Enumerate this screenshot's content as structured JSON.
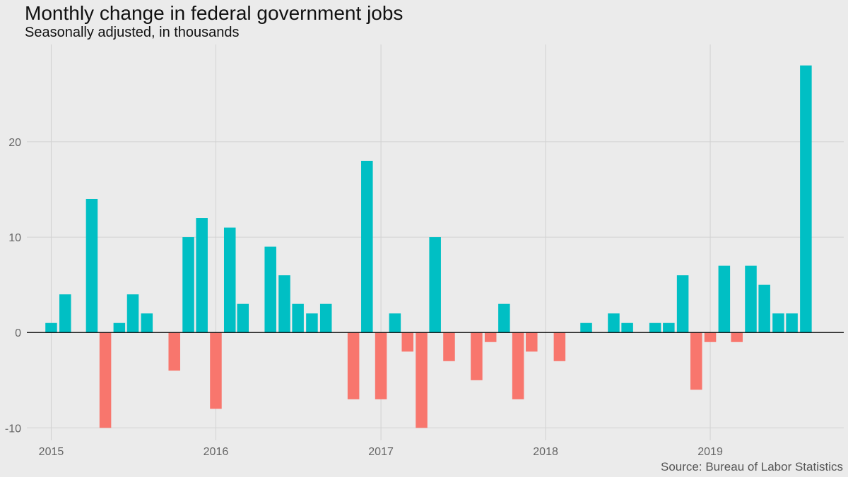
{
  "chart_data": {
    "type": "bar",
    "title": "Monthly change in federal government jobs",
    "subtitle": "Seasonally adjusted, in thousands",
    "caption": "Source: Bureau of Labor Statistics",
    "xlabel": "",
    "ylabel": "",
    "ylim": [
      -11.3,
      30.2
    ],
    "yticks": [
      -10,
      0,
      10,
      20
    ],
    "xticks": [
      "2015",
      "2016",
      "2017",
      "2018",
      "2019"
    ],
    "x_range": [
      "2014-11-08",
      "2019-10-24"
    ],
    "grid": true,
    "legend": "none",
    "colors": {
      "positive": "#00bfc4",
      "negative": "#f8766d",
      "zero_line": "#000000"
    },
    "x": [
      "2015-01",
      "2015-02",
      "2015-03",
      "2015-04",
      "2015-05",
      "2015-06",
      "2015-07",
      "2015-08",
      "2015-09",
      "2015-10",
      "2015-11",
      "2015-12",
      "2016-01",
      "2016-02",
      "2016-03",
      "2016-04",
      "2016-05",
      "2016-06",
      "2016-07",
      "2016-08",
      "2016-09",
      "2016-10",
      "2016-11",
      "2016-12",
      "2017-01",
      "2017-02",
      "2017-03",
      "2017-04",
      "2017-05",
      "2017-06",
      "2017-07",
      "2017-08",
      "2017-09",
      "2017-10",
      "2017-11",
      "2017-12",
      "2018-01",
      "2018-02",
      "2018-03",
      "2018-04",
      "2018-05",
      "2018-06",
      "2018-07",
      "2018-08",
      "2018-09",
      "2018-10",
      "2018-11",
      "2018-12",
      "2019-01",
      "2019-02",
      "2019-03",
      "2019-04",
      "2019-05",
      "2019-06",
      "2019-07",
      "2019-08"
    ],
    "values": [
      1,
      4,
      0,
      14,
      -10,
      1,
      4,
      2,
      0,
      -4,
      10,
      12,
      -8,
      11,
      3,
      0,
      9,
      6,
      3,
      2,
      3,
      0,
      -7,
      18,
      -7,
      2,
      -2,
      -10,
      10,
      -3,
      0,
      -5,
      -1,
      3,
      -7,
      -2,
      0,
      -3,
      0,
      1,
      0,
      2,
      1,
      0,
      1,
      1,
      6,
      -6,
      -1,
      7,
      -1,
      7,
      5,
      2,
      2,
      28
    ]
  }
}
